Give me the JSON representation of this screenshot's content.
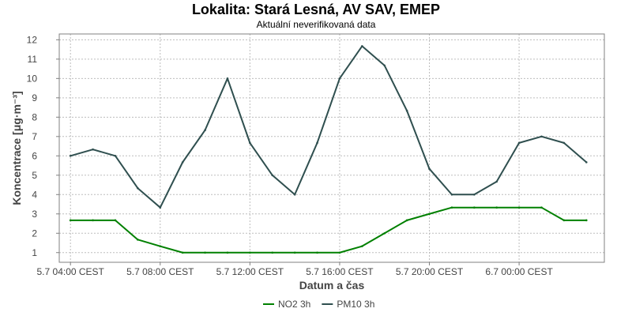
{
  "chart_data": {
    "type": "line",
    "title": "Lokalita: Stará Lesná, AV SAV, EMEP",
    "subtitle": "Aktuální neverifikovaná data",
    "xlabel": "Datum a čas",
    "ylabel": "Koncentrace [μg·m⁻³]",
    "ylim": [
      0.5,
      12.3
    ],
    "yticks": [
      1,
      2,
      3,
      4,
      5,
      6,
      7,
      8,
      9,
      10,
      11,
      12
    ],
    "xticks": [
      {
        "x": 0,
        "label": "5.7 04:00 CEST"
      },
      {
        "x": 4,
        "label": "5.7 08:00 CEST"
      },
      {
        "x": 8,
        "label": "5.7 12:00 CEST"
      },
      {
        "x": 12,
        "label": "5.7 16:00 CEST"
      },
      {
        "x": 16,
        "label": "5.7 20:00 CEST"
      },
      {
        "x": 20,
        "label": "6.7 00:00 CEST"
      }
    ],
    "x": [
      0,
      1,
      2,
      3,
      4,
      5,
      6,
      7,
      8,
      9,
      10,
      11,
      12,
      13,
      14,
      15,
      16,
      17,
      18,
      19,
      20,
      21,
      22,
      23
    ],
    "grid": true,
    "legend_position": "bottom",
    "series": [
      {
        "name": "NO2 3h",
        "color": "#008000",
        "values": [
          2.67,
          2.67,
          2.67,
          1.67,
          1.33,
          1.0,
          1.0,
          1.0,
          1.0,
          1.0,
          1.0,
          1.0,
          1.0,
          1.33,
          2.0,
          2.67,
          3.0,
          3.33,
          3.33,
          3.33,
          3.33,
          3.33,
          2.67,
          2.67
        ]
      },
      {
        "name": "PM10 3h",
        "color": "#2f4f4f",
        "values": [
          6.0,
          6.33,
          6.0,
          4.33,
          3.33,
          5.67,
          7.33,
          10.0,
          6.67,
          5.0,
          4.0,
          6.67,
          10.0,
          11.67,
          10.67,
          8.33,
          5.33,
          4.0,
          4.0,
          4.67,
          6.67,
          7.0,
          6.67,
          5.67
        ]
      }
    ]
  }
}
